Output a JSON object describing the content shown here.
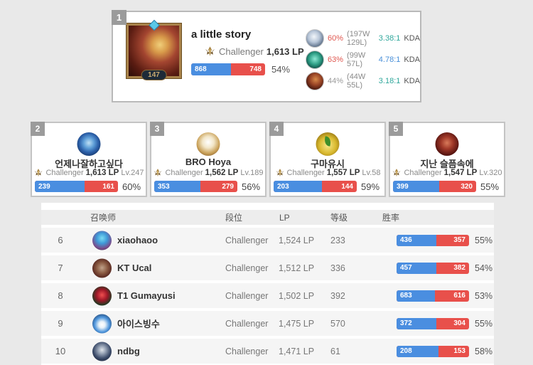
{
  "colors": {
    "win_bar_blue": "#4a8ee0",
    "loss_bar_red": "#e8504b",
    "kda_teal": "#2fa79b",
    "kda_blue": "#4a90d9",
    "winrate_red": "#e0574f",
    "winrate_gray": "#9a9a9a"
  },
  "top_player": {
    "rank": "1",
    "name": "a little story",
    "summoner_level": "147",
    "tier": "Challenger",
    "lp": "1,613 LP",
    "wins": "868",
    "losses": "748",
    "winrate": "54%",
    "win_pct": 53.7,
    "champions": [
      {
        "winrate": "60%",
        "winrate_color": "#e0574f",
        "record": "(197W 129L)",
        "kda": "3.38:1",
        "kda_color": "#2fa79b",
        "kda_label": "KDA"
      },
      {
        "winrate": "63%",
        "winrate_color": "#e0574f",
        "record": "(99W 57L)",
        "kda": "4.78:1",
        "kda_color": "#4a90d9",
        "kda_label": "KDA"
      },
      {
        "winrate": "44%",
        "winrate_color": "#9a9a9a",
        "record": "(44W 55L)",
        "kda": "3.18:1",
        "kda_color": "#2fa79b",
        "kda_label": "KDA"
      }
    ]
  },
  "rank_cards": [
    {
      "rank": "2",
      "name": "언제나잘하고싶다",
      "tier": "Challenger",
      "lp": "1,613 LP",
      "level": "Lv.247",
      "wins": "239",
      "losses": "161",
      "winrate": "60%",
      "win_pct": 59.8
    },
    {
      "rank": "3",
      "name": "BRO Hoya",
      "tier": "Challenger",
      "lp": "1,562 LP",
      "level": "Lv.189",
      "wins": "353",
      "losses": "279",
      "winrate": "56%",
      "win_pct": 55.9
    },
    {
      "rank": "4",
      "name": "구마유시",
      "tier": "Challenger",
      "lp": "1,557 LP",
      "level": "Lv.58",
      "wins": "203",
      "losses": "144",
      "winrate": "59%",
      "win_pct": 58.5
    },
    {
      "rank": "5",
      "name": "지난 슬픔속에",
      "tier": "Challenger",
      "lp": "1,547 LP",
      "level": "Lv.320",
      "wins": "399",
      "losses": "320",
      "winrate": "55%",
      "win_pct": 55.5
    }
  ],
  "table": {
    "headers": {
      "summoner": "召唤师",
      "tier": "段位",
      "lp": "LP",
      "level": "等级",
      "winrate": "胜率"
    },
    "rows": [
      {
        "rank": "6",
        "name": "xiaohaoo",
        "tier": "Challenger",
        "lp": "1,524 LP",
        "level": "233",
        "wins": "436",
        "losses": "357",
        "winrate": "55%",
        "win_pct": 55.0
      },
      {
        "rank": "7",
        "name": "KT Ucal",
        "tier": "Challenger",
        "lp": "1,512 LP",
        "level": "336",
        "wins": "457",
        "losses": "382",
        "winrate": "54%",
        "win_pct": 54.5
      },
      {
        "rank": "8",
        "name": "T1 Gumayusi",
        "tier": "Challenger",
        "lp": "1,502 LP",
        "level": "392",
        "wins": "683",
        "losses": "616",
        "winrate": "53%",
        "win_pct": 52.6
      },
      {
        "rank": "9",
        "name": "아이스빙수",
        "tier": "Challenger",
        "lp": "1,475 LP",
        "level": "570",
        "wins": "372",
        "losses": "304",
        "winrate": "55%",
        "win_pct": 55.0
      },
      {
        "rank": "10",
        "name": "ndbg",
        "tier": "Challenger",
        "lp": "1,471 LP",
        "level": "61",
        "wins": "208",
        "losses": "153",
        "winrate": "58%",
        "win_pct": 57.6
      }
    ]
  }
}
